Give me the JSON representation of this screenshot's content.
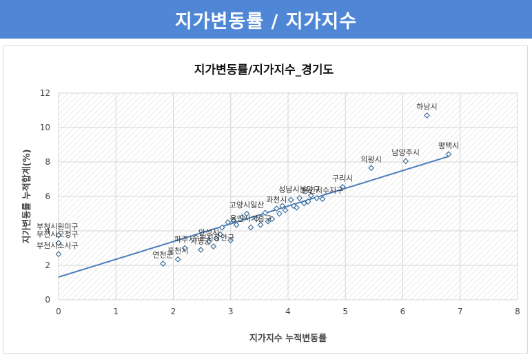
{
  "header": {
    "title": "지가변동률 / 지가지수"
  },
  "chart_data": {
    "type": "scatter",
    "title": "지가변동률/지가지수_경기도",
    "xlabel": "지가지수 누적변동률",
    "ylabel": "지가변동률 누적합계(%)",
    "xlim": [
      0,
      8
    ],
    "ylim": [
      0,
      12
    ],
    "xticks": [
      "0",
      "1",
      "2",
      "3",
      "4",
      "5",
      "6",
      "7",
      "8"
    ],
    "yticks": [
      "0",
      "2",
      "4",
      "6",
      "8",
      "10",
      "12"
    ],
    "grid": true,
    "marker_color": "#41719c",
    "trendline": {
      "color": "#4a7ebb",
      "slope": 1.03,
      "intercept": 1.32
    },
    "points": [
      {
        "x": 0.0,
        "y": 3.75,
        "label": "부천시원미구"
      },
      {
        "x": 0.0,
        "y": 3.3,
        "label": "부천시오정구"
      },
      {
        "x": 0.0,
        "y": 2.65,
        "label": "부천시소사구"
      },
      {
        "x": 1.82,
        "y": 2.1,
        "label": "연천군"
      },
      {
        "x": 2.08,
        "y": 2.35,
        "label": "포천시"
      },
      {
        "x": 2.2,
        "y": 3.0,
        "label": "파주시"
      },
      {
        "x": 2.48,
        "y": 2.9,
        "label": "가평군"
      },
      {
        "x": 2.62,
        "y": 3.4,
        "label": "안성시"
      },
      {
        "x": 2.7,
        "y": 3.1,
        "label": "수원시장안구"
      },
      {
        "x": 2.75,
        "y": 3.55,
        "label": ""
      },
      {
        "x": 2.82,
        "y": 3.8,
        "label": ""
      },
      {
        "x": 2.85,
        "y": 4.2,
        "label": ""
      },
      {
        "x": 2.95,
        "y": 4.5,
        "label": ""
      },
      {
        "x": 3.0,
        "y": 3.45,
        "label": ""
      },
      {
        "x": 3.05,
        "y": 4.6,
        "label": ""
      },
      {
        "x": 3.1,
        "y": 4.35,
        "label": ""
      },
      {
        "x": 3.2,
        "y": 4.8,
        "label": ""
      },
      {
        "x": 3.28,
        "y": 5.0,
        "label": "고양시일산"
      },
      {
        "x": 3.35,
        "y": 4.2,
        "label": "용인시기흥구"
      },
      {
        "x": 3.45,
        "y": 4.7,
        "label": ""
      },
      {
        "x": 3.52,
        "y": 4.35,
        "label": ""
      },
      {
        "x": 3.6,
        "y": 5.05,
        "label": ""
      },
      {
        "x": 3.65,
        "y": 4.55,
        "label": ""
      },
      {
        "x": 3.72,
        "y": 4.7,
        "label": ""
      },
      {
        "x": 3.8,
        "y": 5.3,
        "label": "과천시"
      },
      {
        "x": 3.85,
        "y": 5.0,
        "label": ""
      },
      {
        "x": 3.9,
        "y": 5.45,
        "label": ""
      },
      {
        "x": 3.95,
        "y": 5.2,
        "label": ""
      },
      {
        "x": 4.05,
        "y": 5.8,
        "label": ""
      },
      {
        "x": 4.1,
        "y": 5.45,
        "label": ""
      },
      {
        "x": 4.15,
        "y": 5.35,
        "label": ""
      },
      {
        "x": 4.2,
        "y": 5.9,
        "label": "성남시분당구"
      },
      {
        "x": 4.28,
        "y": 5.6,
        "label": ""
      },
      {
        "x": 4.35,
        "y": 5.7,
        "label": ""
      },
      {
        "x": 4.4,
        "y": 6.05,
        "label": ""
      },
      {
        "x": 4.5,
        "y": 5.9,
        "label": ""
      },
      {
        "x": 4.6,
        "y": 5.85,
        "label": "용인시수지구"
      },
      {
        "x": 4.95,
        "y": 6.55,
        "label": "구리시"
      },
      {
        "x": 5.45,
        "y": 7.65,
        "label": "의왕시"
      },
      {
        "x": 6.05,
        "y": 8.05,
        "label": "남양주시"
      },
      {
        "x": 6.42,
        "y": 10.7,
        "label": "하남시"
      },
      {
        "x": 6.8,
        "y": 8.45,
        "label": "평택시"
      }
    ]
  }
}
